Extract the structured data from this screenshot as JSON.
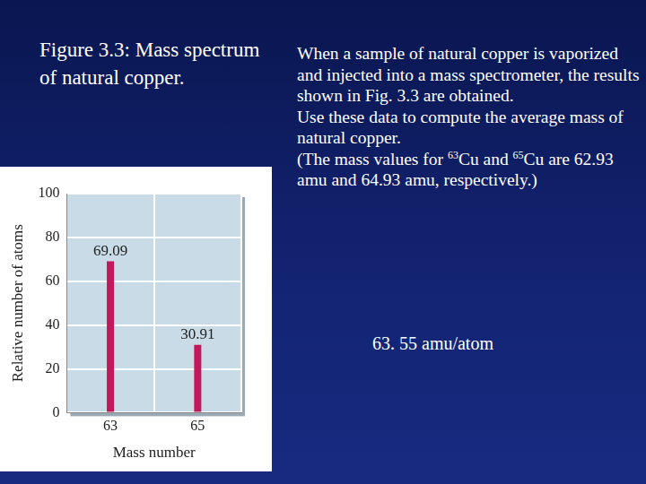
{
  "slide": {
    "figure_title": "Figure 3.3: Mass spectrum of natural copper.",
    "problem": [
      [
        {
          "text": "When a sample of natural copper is vaporized and injected into a mass spectrometer, the results shown in Fig. 3.3 are obtained."
        }
      ],
      [
        {
          "text": " Use these data to compute  the average mass of natural copper."
        }
      ],
      [
        {
          "text": "(The mass values for "
        },
        {
          "text": "63",
          "sup": true
        },
        {
          "text": "Cu and "
        },
        {
          "text": "65",
          "sup": true
        },
        {
          "text": "Cu are 62.93 amu and 64.93 amu, respectively.)"
        }
      ]
    ],
    "answer": "63. 55 amu/atom"
  },
  "chart_data": {
    "type": "bar",
    "categories": [
      "63",
      "65"
    ],
    "values": [
      69.09,
      30.91
    ],
    "color": "#c2185b",
    "x_label": "Mass number",
    "y_label": "Relative number of atoms",
    "ylim": [
      0,
      100
    ],
    "yticks": [
      0,
      20,
      40,
      60,
      80,
      100
    ],
    "grid": true,
    "data_labels": true
  }
}
